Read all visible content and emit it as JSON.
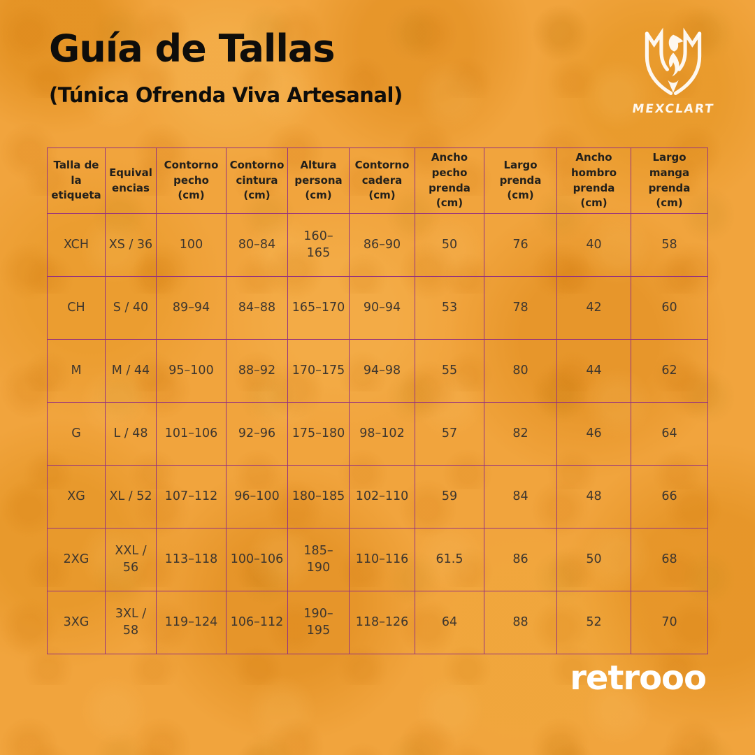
{
  "header": {
    "title": "Guía de Tallas",
    "subtitle": "(Túnica Ofrenda Viva Artesanal)",
    "brand": "MEXCLART",
    "logo_icon": "eagle-shield-icon"
  },
  "footer": {
    "brand": "retrooo"
  },
  "colors": {
    "background": "#F1A43D",
    "table_border": "#96327E",
    "title_text": "#0E0D0B",
    "cell_text": "#3E362E",
    "logo_white": "#FFFFFF"
  },
  "table": {
    "headers": [
      "Talla de\nla\netiqueta",
      "Equival\nencias",
      "Contorno\npecho (cm)",
      "Contorno\ncintura\n(cm)",
      "Altura\npersona\n(cm)",
      "Contorno\ncadera\n(cm)",
      "Ancho pecho\nprenda (cm)",
      "Largo prenda\n(cm)",
      "Ancho\nhombro\nprenda (cm)",
      "Largo manga\nprenda (cm)"
    ],
    "rows": [
      [
        "XCH",
        "XS / 36",
        "100",
        "80–84",
        "160–\n165",
        "86–90",
        "50",
        "76",
        "40",
        "58"
      ],
      [
        "CH",
        "S / 40",
        "89–94",
        "84–88",
        "165–170",
        "90–94",
        "53",
        "78",
        "42",
        "60"
      ],
      [
        "M",
        "M / 44",
        "95–100",
        "88–92",
        "170–175",
        "94–98",
        "55",
        "80",
        "44",
        "62"
      ],
      [
        "G",
        "L / 48",
        "101–106",
        "92–96",
        "175–180",
        "98–102",
        "57",
        "82",
        "46",
        "64"
      ],
      [
        "XG",
        "XL / 52",
        "107–112",
        "96–100",
        "180–185",
        "102–110",
        "59",
        "84",
        "48",
        "66"
      ],
      [
        "2XG",
        "XXL /\n56",
        "113–118",
        "100–106",
        "185–\n190",
        "110–116",
        "61.5",
        "86",
        "50",
        "68"
      ],
      [
        "3XG",
        "3XL /\n58",
        "119–124",
        "106–112",
        "190–\n195",
        "118–126",
        "64",
        "88",
        "52",
        "70"
      ]
    ]
  }
}
